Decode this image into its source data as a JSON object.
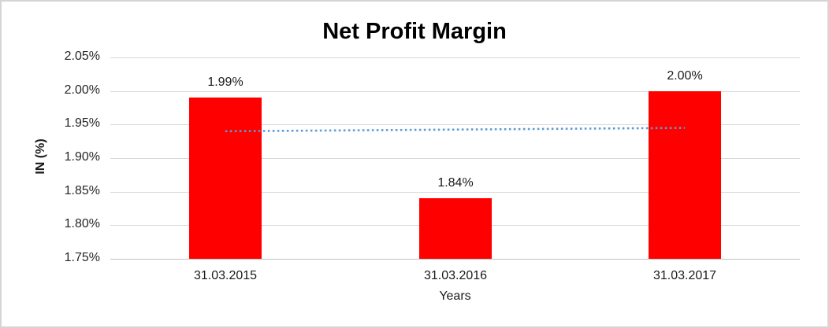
{
  "chart_data": {
    "type": "bar",
    "title": "Net Profit Margin",
    "xlabel": "Years",
    "ylabel": "IN (%)",
    "categories": [
      "31.03.2015",
      "31.03.2016",
      "31.03.2017"
    ],
    "values": [
      1.99,
      1.84,
      2.0
    ],
    "data_labels": [
      "1.99%",
      "1.84%",
      "2.00%"
    ],
    "ylim": [
      1.75,
      2.05
    ],
    "yticks": [
      2.05,
      2.0,
      1.95,
      1.9,
      1.85,
      1.8,
      1.75
    ],
    "ytick_labels": [
      "2.05%",
      "2.00%",
      "1.95%",
      "1.90%",
      "1.85%",
      "1.80%",
      "1.75%"
    ],
    "grid": true,
    "legend": "none",
    "bar_color": "#ff0000",
    "trendline": {
      "style": "dotted",
      "color": "#5b9bd5",
      "start_value": 1.94,
      "end_value": 1.945,
      "span": "first-category-center-to-last-category-center"
    }
  },
  "colors": {
    "gridline": "#d9d9d9",
    "axis_line": "#bfbfbf",
    "frame_border": "#d5d5d5",
    "text": "#1a1a1a",
    "title": "#000000",
    "background": "#ffffff"
  }
}
